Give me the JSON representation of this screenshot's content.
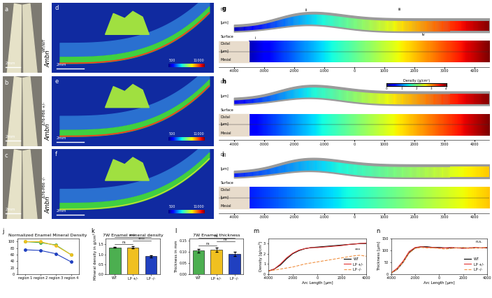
{
  "image_panels": {
    "genotypes": [
      {
        "base": "Ambn",
        "sup": "WT/WT"
      },
      {
        "base": "Ambn",
        "sup": "Δ76-P86 +/-"
      },
      {
        "base": "Ambn",
        "sup": "Δ76-P86 -/-"
      }
    ],
    "photo_letters": [
      "a",
      "b",
      "c"
    ],
    "ct_letters": [
      "d",
      "e",
      "f"
    ],
    "map_letters": [
      "g",
      "h",
      "i"
    ],
    "scale_bar": "2mm",
    "ct_colorbar_ticks": [
      "500",
      "11000"
    ],
    "map": {
      "xlim": [
        -4500,
        4500
      ],
      "xticks": [
        -4000,
        -3000,
        -2000,
        -1000,
        0,
        1000,
        2000,
        3000,
        4000
      ],
      "texts": {
        "dej": "DEJ",
        "surface": "Surface",
        "distal": "Distal",
        "mesial": "Mesial",
        "unit": "[µm]"
      },
      "zone_labels": [
        "i",
        "ii",
        "iii",
        "iv"
      ],
      "colorbar": {
        "label": "Density (g/cm³)",
        "ticks": [
          0,
          1,
          2,
          3,
          4
        ]
      }
    }
  },
  "chart_letters": [
    "j",
    "k",
    "l",
    "m",
    "n"
  ],
  "chart_data": [
    {
      "type": "line",
      "title": "Normalized Enamel Mineral Density",
      "categories": [
        "region 1",
        "region 2",
        "region 3",
        "region 4"
      ],
      "series": [
        {
          "color": "#4caf50",
          "marker": "circle",
          "values": [
            100,
            97,
            90,
            60
          ]
        },
        {
          "color": "#f0c020",
          "marker": "circle",
          "values": [
            100,
            100,
            88,
            60
          ]
        },
        {
          "color": "#2040c0",
          "marker": "circle",
          "values": [
            75,
            73,
            63,
            38
          ]
        }
      ],
      "ylim": [
        0,
        110
      ],
      "yticks": [
        0,
        20,
        40,
        60,
        80,
        100
      ]
    },
    {
      "type": "bar",
      "title": "7W Enamel mineral density",
      "y_label": "Mineral density in g/cm³",
      "categories": [
        "WT",
        "LP +/-",
        "LP -/-"
      ],
      "values": [
        1.35,
        1.35,
        0.9
      ],
      "errors": [
        0.03,
        0.04,
        0.05
      ],
      "colors": [
        "#4caf50",
        "#f0c020",
        "#2040c0"
      ],
      "ylim": [
        0,
        1.8
      ],
      "yticks": [
        0.0,
        0.5,
        1.0,
        1.5
      ],
      "annotations": [
        {
          "text": "ns",
          "between": [
            0,
            1
          ]
        },
        {
          "text": "****",
          "between": [
            1,
            2
          ]
        },
        {
          "text": "****",
          "between": [
            0,
            2
          ]
        }
      ]
    },
    {
      "type": "bar",
      "title": "7W Enamel thickness",
      "y_label": "Thickness in mm",
      "categories": [
        "WT",
        "LP +/-",
        "LP -/-"
      ],
      "values": [
        0.105,
        0.11,
        0.09
      ],
      "errors": [
        0.008,
        0.01,
        0.01
      ],
      "colors": [
        "#4caf50",
        "#f0c020",
        "#2040c0"
      ],
      "ylim": [
        0,
        0.16
      ],
      "yticks": [
        {
          "value": 0,
          "label": "0.00"
        },
        {
          "value": 0.05,
          "label": "0.05"
        },
        {
          "value": 0.1,
          "label": "0.10"
        },
        {
          "value": 0.15,
          "label": "0.15"
        }
      ],
      "annotations": [
        {
          "text": "ns",
          "between": [
            0,
            1
          ]
        },
        {
          "text": "ns",
          "between": [
            1,
            2
          ]
        },
        {
          "text": "ns",
          "between": [
            0,
            2
          ]
        }
      ]
    },
    {
      "type": "line",
      "x_label": "Arc Length [µm]",
      "y_label": "Density [g/cm³]",
      "x": [
        -4000,
        -3500,
        -3000,
        -2500,
        -2000,
        -1500,
        -1000,
        -500,
        0,
        500,
        1000,
        1500,
        2000,
        2500,
        3000,
        3500,
        4000
      ],
      "series": [
        {
          "name": "WT",
          "color": "#000000",
          "line_style": "solid",
          "values": [
            0.3,
            0.5,
            0.9,
            1.5,
            2.0,
            2.3,
            2.5,
            2.6,
            2.65,
            2.7,
            2.75,
            2.8,
            2.85,
            2.9,
            2.95,
            3.0,
            3.0
          ]
        },
        {
          "name": "LP +/-",
          "color": "#e03030",
          "line_style": "solid",
          "values": [
            0.3,
            0.5,
            1.0,
            1.6,
            2.05,
            2.35,
            2.5,
            2.6,
            2.6,
            2.65,
            2.7,
            2.75,
            2.8,
            2.9,
            2.95,
            3.0,
            3.05
          ]
        },
        {
          "name": "LP -/-",
          "color": "#f09040",
          "line_style": "dashed",
          "values": [
            0.3,
            0.4,
            0.5,
            0.6,
            0.7,
            0.85,
            1.0,
            1.1,
            1.2,
            1.3,
            1.4,
            1.5,
            1.6,
            1.7,
            1.8,
            1.85,
            1.75
          ]
        }
      ],
      "xlim": [
        -4000,
        4000
      ],
      "xticks": [
        -4000,
        -2000,
        0,
        2000,
        4000
      ],
      "ylim": [
        0,
        3.5
      ],
      "yticks": [
        0,
        1,
        2,
        3
      ],
      "legend": "lower right",
      "annotations": [
        {
          "text": "***",
          "x": 3300,
          "y": 2.2
        }
      ]
    },
    {
      "type": "line",
      "x_label": "Arc Length [µm]",
      "y_label": "Thickness [µm]",
      "x": [
        -4000,
        -3500,
        -3000,
        -2500,
        -2000,
        -1500,
        -1000,
        -500,
        0,
        500,
        1000,
        1500,
        2000,
        2500,
        3000,
        3500,
        4000
      ],
      "series": [
        {
          "name": "WT",
          "color": "#000000",
          "line_style": "solid",
          "values": [
            5,
            20,
            50,
            90,
            110,
            115,
            115,
            112,
            112,
            110,
            110,
            110,
            110,
            110,
            110,
            110,
            110
          ]
        },
        {
          "name": "LP +/-",
          "color": "#e03030",
          "line_style": "solid",
          "values": [
            5,
            25,
            55,
            95,
            112,
            115,
            112,
            112,
            110,
            110,
            112,
            110,
            108,
            110,
            112,
            110,
            112
          ]
        },
        {
          "name": "LP -/-",
          "color": "#f09040",
          "line_style": "dashed",
          "values": [
            5,
            20,
            50,
            88,
            108,
            112,
            110,
            110,
            108,
            105,
            108,
            110,
            112,
            108,
            110,
            110,
            112
          ]
        }
      ],
      "xlim": [
        -4000,
        4000
      ],
      "xticks": [
        -4000,
        -2000,
        0,
        2000,
        4000
      ],
      "ylim": [
        0,
        150
      ],
      "yticks": [
        0,
        50,
        100,
        150
      ],
      "legend": "lower right",
      "annotations": [
        {
          "text": "n.s.",
          "x": 3300,
          "y": 130
        }
      ]
    }
  ]
}
